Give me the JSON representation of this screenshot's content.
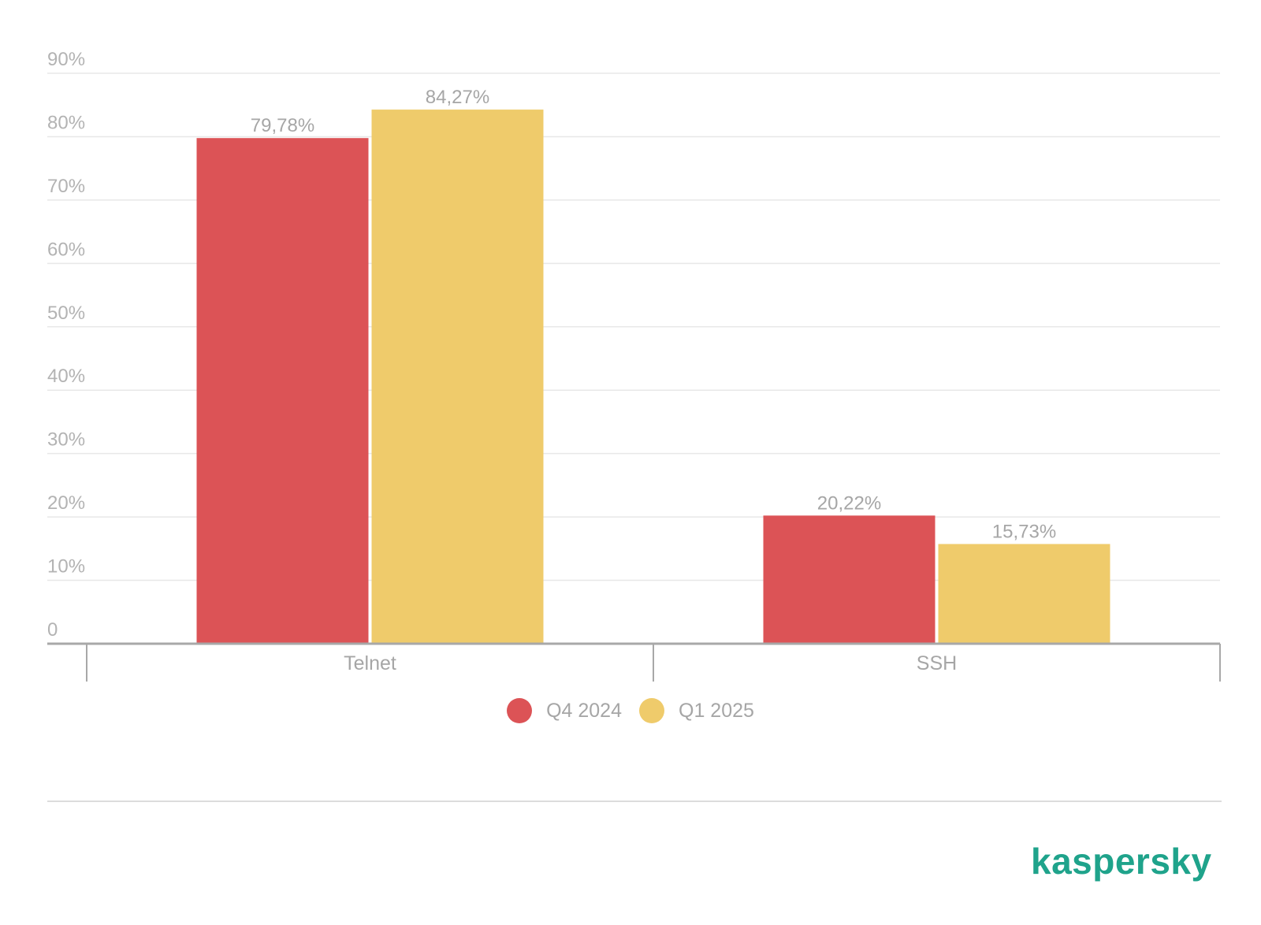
{
  "chart_data": {
    "type": "bar",
    "categories": [
      "Telnet",
      "SSH"
    ],
    "series": [
      {
        "name": "Q4 2024",
        "color": "#dc5356",
        "values": [
          79.78,
          20.22
        ],
        "labels": [
          "79,78%",
          "20,22%"
        ]
      },
      {
        "name": "Q1 2025",
        "color": "#efcb6b",
        "values": [
          84.27,
          15.73
        ],
        "labels": [
          "84,27%",
          "15,73%"
        ]
      }
    ],
    "yticks": [
      {
        "value": 0,
        "label": "0"
      },
      {
        "value": 10,
        "label": "10%"
      },
      {
        "value": 20,
        "label": "20%"
      },
      {
        "value": 30,
        "label": "30%"
      },
      {
        "value": 40,
        "label": "40%"
      },
      {
        "value": 50,
        "label": "50%"
      },
      {
        "value": 60,
        "label": "60%"
      },
      {
        "value": 70,
        "label": "70%"
      },
      {
        "value": 80,
        "label": "80%"
      },
      {
        "value": 90,
        "label": "90%"
      }
    ],
    "ylim": [
      0,
      90
    ],
    "grid": true,
    "legend_position": "bottom-center"
  },
  "brand": {
    "logo_text": "kaspersky",
    "color": "#1fa38b"
  }
}
